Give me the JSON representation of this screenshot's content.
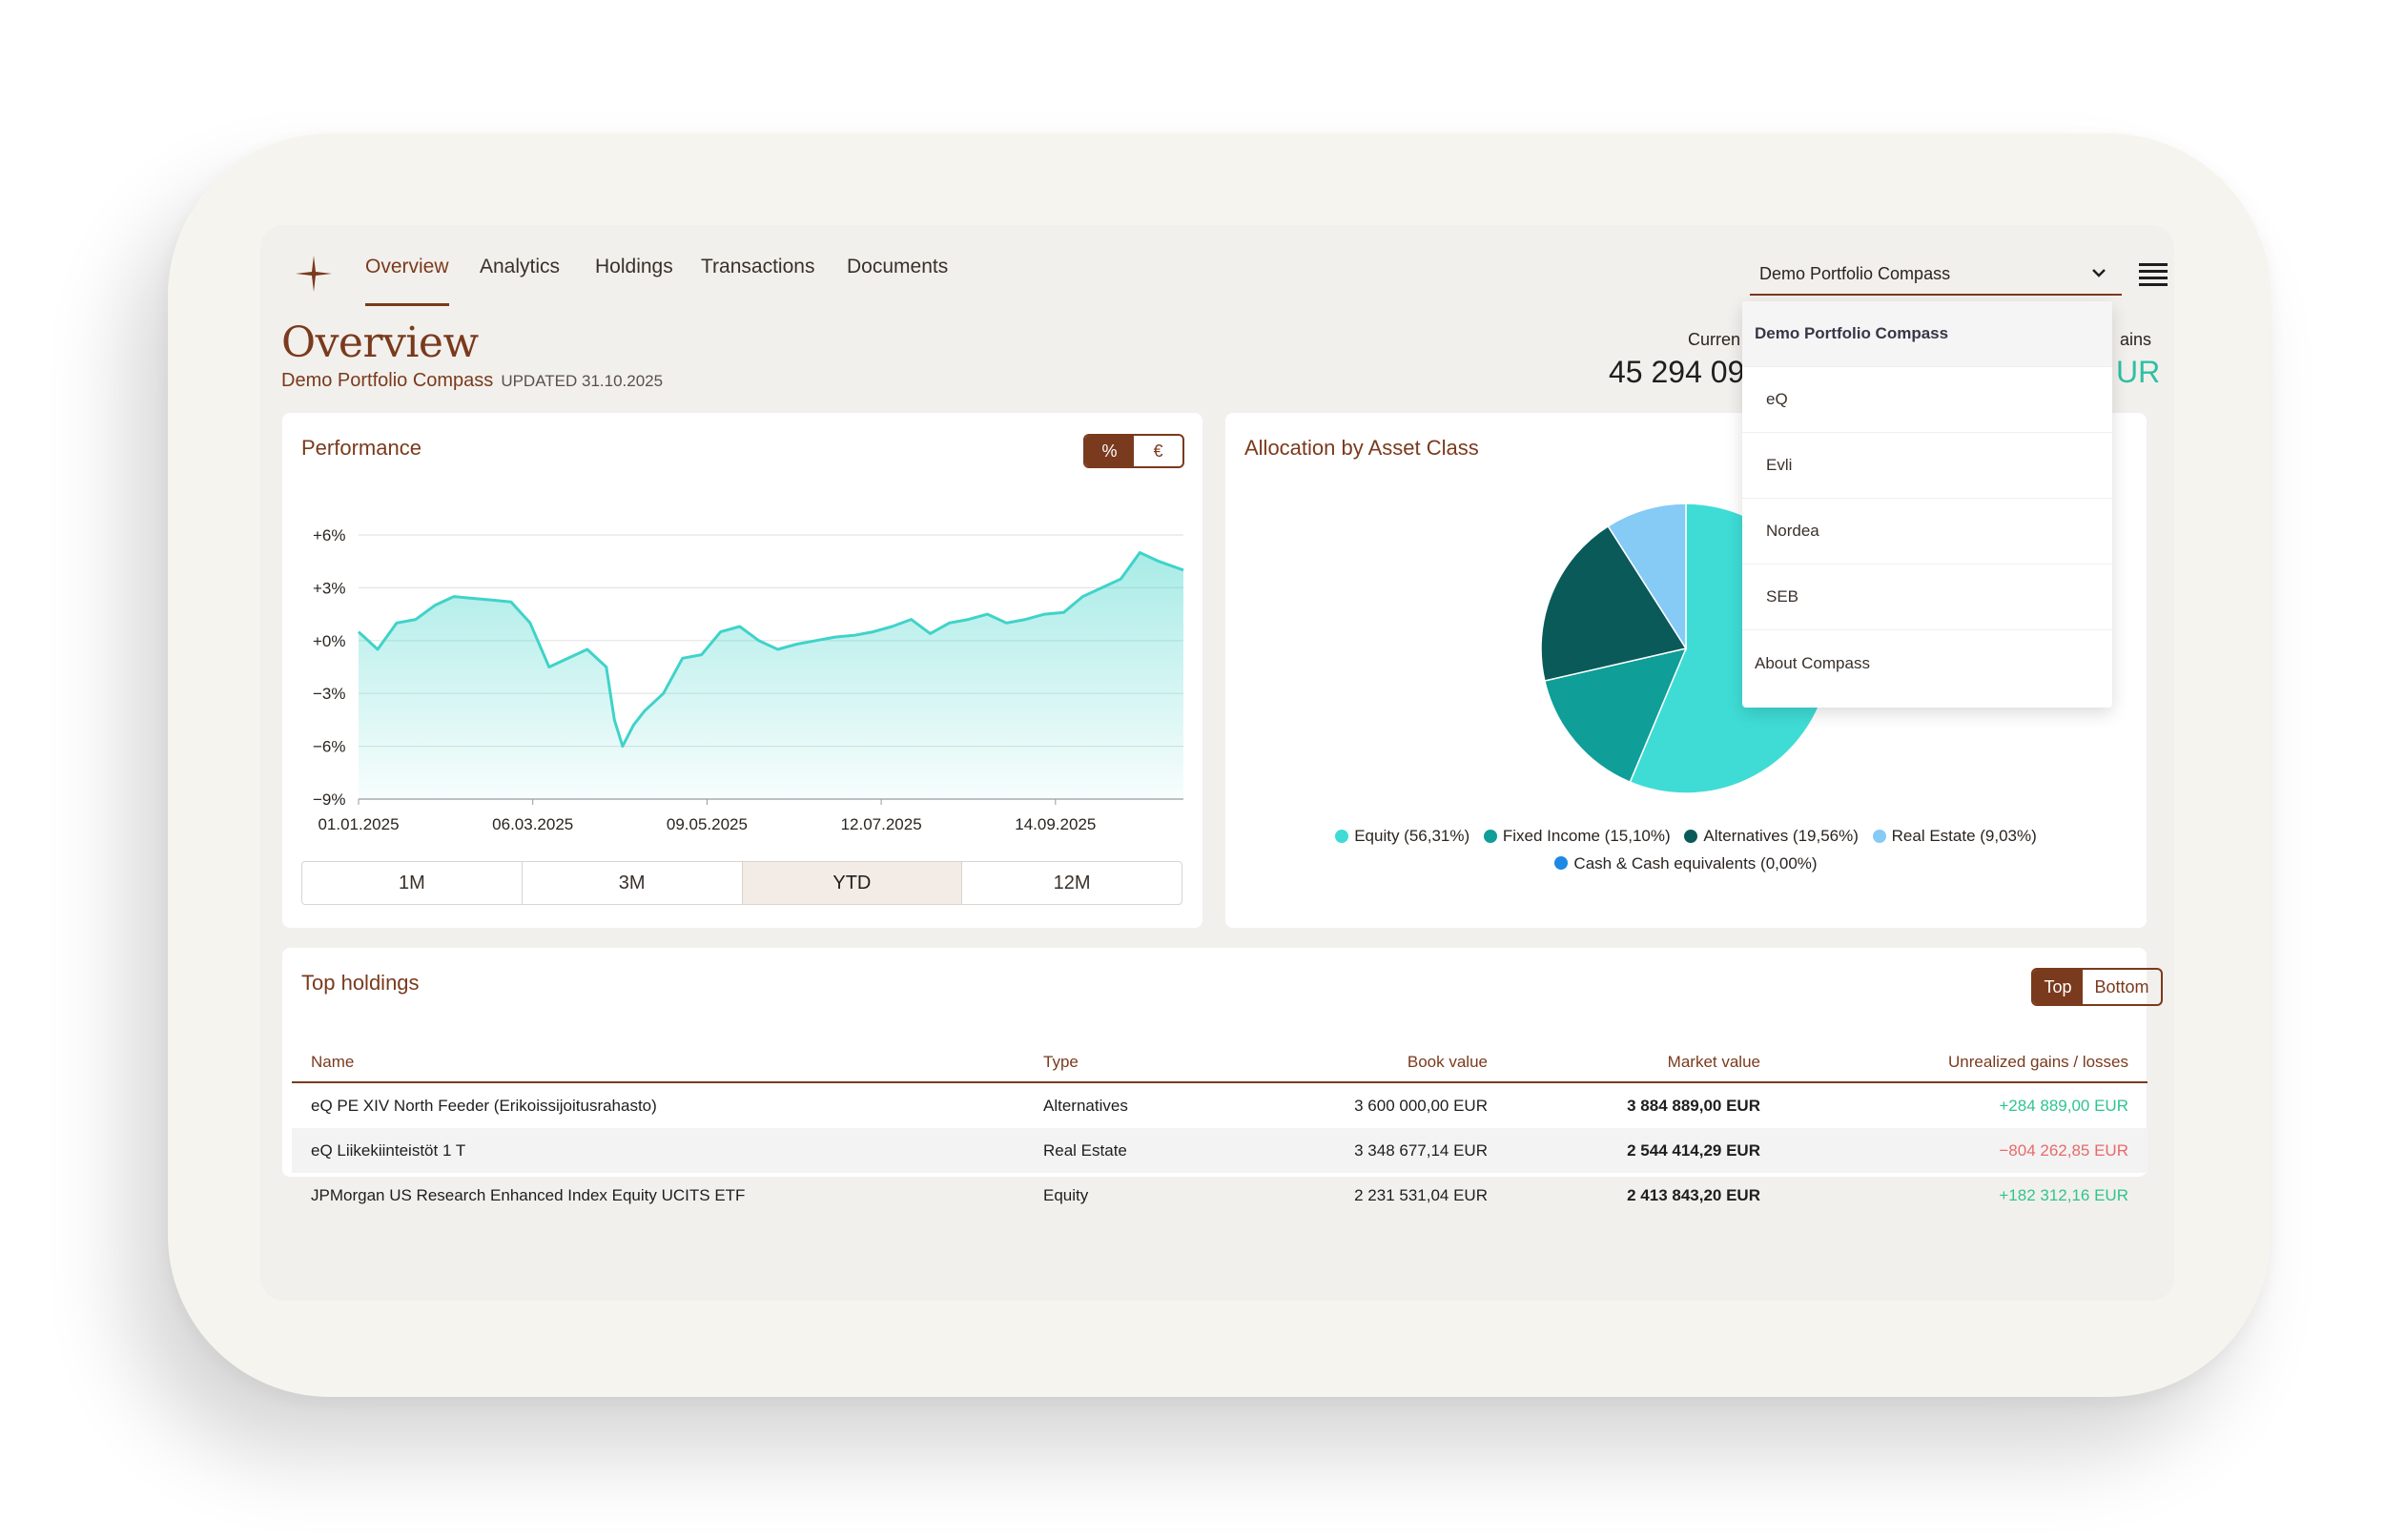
{
  "nav": {
    "tabs": [
      {
        "label": "Overview",
        "active": true
      },
      {
        "label": "Analytics",
        "active": false
      },
      {
        "label": "Holdings",
        "active": false
      },
      {
        "label": "Transactions",
        "active": false
      },
      {
        "label": "Documents",
        "active": false
      }
    ],
    "portfolio_select": "Demo Portfolio Compass",
    "icons": {
      "brand": "compass-star-icon",
      "chevron": "chevron-down-icon",
      "menu": "hamburger-menu-icon"
    }
  },
  "header": {
    "title": "Overview",
    "portfolio_name": "Demo Portfolio Compass",
    "updated": "UPDATED 31.10.2025",
    "current_label": "Curren",
    "current_value": "45 294 09",
    "gains_label": "ains",
    "gains_value": "UR"
  },
  "performance": {
    "title": "Performance",
    "unit_toggle": {
      "percent": "%",
      "euro": "€",
      "selected": "%"
    },
    "ranges": [
      "1M",
      "3M",
      "YTD",
      "12M"
    ],
    "selected_range": "YTD"
  },
  "allocation": {
    "title": "Allocation by Asset Class"
  },
  "dropdown": {
    "items": [
      "Demo Portfolio Compass",
      "eQ",
      "Evli",
      "Nordea",
      "SEB",
      "About Compass"
    ]
  },
  "holdings": {
    "title": "Top holdings",
    "toggle": {
      "top": "Top",
      "bottom": "Bottom",
      "selected": "Top"
    },
    "columns": [
      "Name",
      "Type",
      "Book value",
      "Market value",
      "Unrealized gains / losses"
    ],
    "rows": [
      {
        "name": "eQ PE XIV North Feeder (Erikoissijoitusrahasto)",
        "type": "Alternatives",
        "book": "3 600 000,00 EUR",
        "market": "3 884 889,00 EUR",
        "gain": "+284 889,00 EUR",
        "positive": true
      },
      {
        "name": "eQ Liikekiinteistöt 1 T",
        "type": "Real Estate",
        "book": "3 348 677,14 EUR",
        "market": "2 544 414,29 EUR",
        "gain": "−804 262,85 EUR",
        "positive": false
      },
      {
        "name": "JPMorgan US Research Enhanced Index Equity UCITS ETF",
        "type": "Equity",
        "book": "2 231 531,04 EUR",
        "market": "2 413 843,20 EUR",
        "gain": "+182 312,16 EUR",
        "positive": true
      }
    ]
  },
  "colors": {
    "brand": "#7a3a1d",
    "line": "#3fd3c9",
    "equity": "#3fdcd6",
    "fixed_income": "#0f9e98",
    "alternatives": "#0a5a5a",
    "real_estate": "#86caf6",
    "cash": "#1e88e5",
    "gain_positive": "#2fc48f",
    "gain_negative": "#e86a6a"
  },
  "chart_data": [
    {
      "type": "line",
      "title": "Performance",
      "xlabel": "",
      "ylabel": "",
      "y_ticks": [
        "+6%",
        "+3%",
        "+0%",
        "−3%",
        "−6%",
        "−9%"
      ],
      "x_ticks": [
        "01.01.2025",
        "06.03.2025",
        "09.05.2025",
        "12.07.2025",
        "14.09.2025"
      ],
      "ylim": [
        -9,
        6
      ],
      "xlim": [
        "2025-01-01",
        "2025-10-31"
      ],
      "grid": true,
      "series": [
        {
          "x": [
            "2025-01-01",
            "2025-01-08",
            "2025-01-15",
            "2025-01-22",
            "2025-01-29",
            "2025-02-05",
            "2025-02-12",
            "2025-02-19",
            "2025-02-26",
            "2025-03-05",
            "2025-03-12",
            "2025-03-19",
            "2025-03-26",
            "2025-04-02",
            "2025-04-05",
            "2025-04-08",
            "2025-04-12",
            "2025-04-16",
            "2025-04-23",
            "2025-04-30",
            "2025-05-07",
            "2025-05-14",
            "2025-05-21",
            "2025-05-28",
            "2025-06-04",
            "2025-06-11",
            "2025-06-18",
            "2025-06-25",
            "2025-07-02",
            "2025-07-09",
            "2025-07-16",
            "2025-07-23",
            "2025-07-30",
            "2025-08-06",
            "2025-08-13",
            "2025-08-20",
            "2025-08-27",
            "2025-09-03",
            "2025-09-10",
            "2025-09-17",
            "2025-09-24",
            "2025-10-01",
            "2025-10-08",
            "2025-10-15",
            "2025-10-22",
            "2025-10-31"
          ],
          "values": [
            0.5,
            -0.5,
            1.0,
            1.2,
            2.0,
            2.5,
            2.4,
            2.3,
            2.2,
            1.0,
            -1.5,
            -1.0,
            -0.5,
            -1.5,
            -4.5,
            -6.0,
            -4.8,
            -4.0,
            -3.0,
            -1.0,
            -0.8,
            0.5,
            0.8,
            0.0,
            -0.5,
            -0.2,
            0.0,
            0.2,
            0.3,
            0.5,
            0.8,
            1.2,
            0.4,
            1.0,
            1.2,
            1.5,
            1.0,
            1.2,
            1.5,
            1.6,
            2.5,
            3.0,
            3.5,
            5.0,
            4.5,
            4.0
          ]
        }
      ]
    },
    {
      "type": "pie",
      "title": "Allocation by Asset Class",
      "categories": [
        "Equity (56,31%)",
        "Fixed Income (15,10%)",
        "Alternatives (19,56%)",
        "Real Estate (9,03%)",
        "Cash & Cash equivalents (0,00%)"
      ],
      "values": [
        56.31,
        15.1,
        19.56,
        9.03,
        0.0
      ],
      "colors": [
        "#3fdcd6",
        "#0f9e98",
        "#0a5a5a",
        "#86caf6",
        "#1e88e5"
      ],
      "legend": "bottom"
    }
  ]
}
